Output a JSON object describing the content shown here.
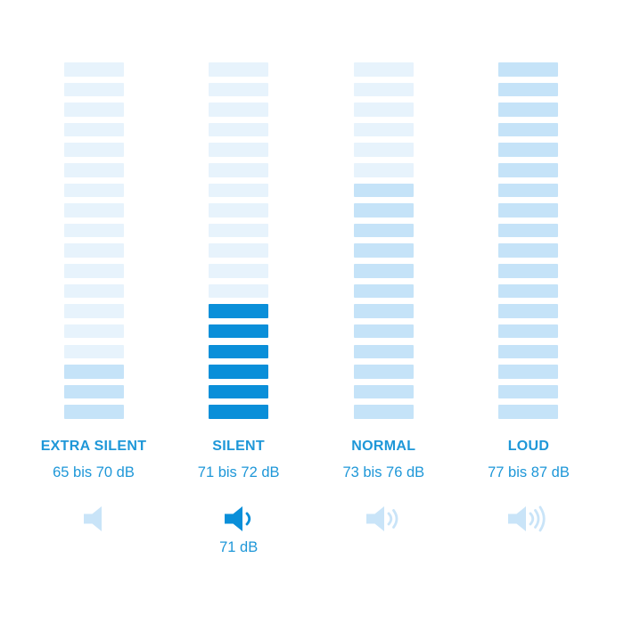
{
  "colors": {
    "segment_light": "#E7F3FC",
    "segment_medium": "#C5E3F8",
    "segment_active": "#0A8FD9",
    "icon_light": "#C9E4F8",
    "text_blue": "#1E97D8"
  },
  "chart_data": {
    "type": "bar",
    "title": "",
    "categories": [
      "EXTRA SILENT",
      "SILENT",
      "NORMAL",
      "LOUD"
    ],
    "category_ranges_label": [
      "65 bis 70 dB",
      "71 bis 72 dB",
      "73 bis 76 dB",
      "77 bis 87 dB"
    ],
    "category_ranges_db": [
      [
        65,
        70
      ],
      [
        71,
        72
      ],
      [
        73,
        76
      ],
      [
        77,
        87
      ]
    ],
    "series": [
      {
        "name": "filled_segments_from_bottom",
        "values": [
          3,
          6,
          12,
          18
        ]
      }
    ],
    "total_segments_per_column": 18,
    "active_category": "SILENT",
    "current_value_label": "71 dB",
    "speaker_wave_counts": [
      0,
      1,
      2,
      3
    ],
    "xlabel": "",
    "ylabel": "",
    "grid": false,
    "legend": "none"
  },
  "columns": [
    {
      "label": "EXTRA SILENT",
      "range": "65 bis 70 dB",
      "filled": 3,
      "active": false,
      "waves": 0,
      "current": ""
    },
    {
      "label": "SILENT",
      "range": "71 bis 72 dB",
      "filled": 6,
      "active": true,
      "waves": 1,
      "current": "71 dB"
    },
    {
      "label": "NORMAL",
      "range": "73 bis 76 dB",
      "filled": 12,
      "active": false,
      "waves": 2,
      "current": ""
    },
    {
      "label": "LOUD",
      "range": "77 bis 87 dB",
      "filled": 18,
      "active": false,
      "waves": 3,
      "current": ""
    }
  ]
}
